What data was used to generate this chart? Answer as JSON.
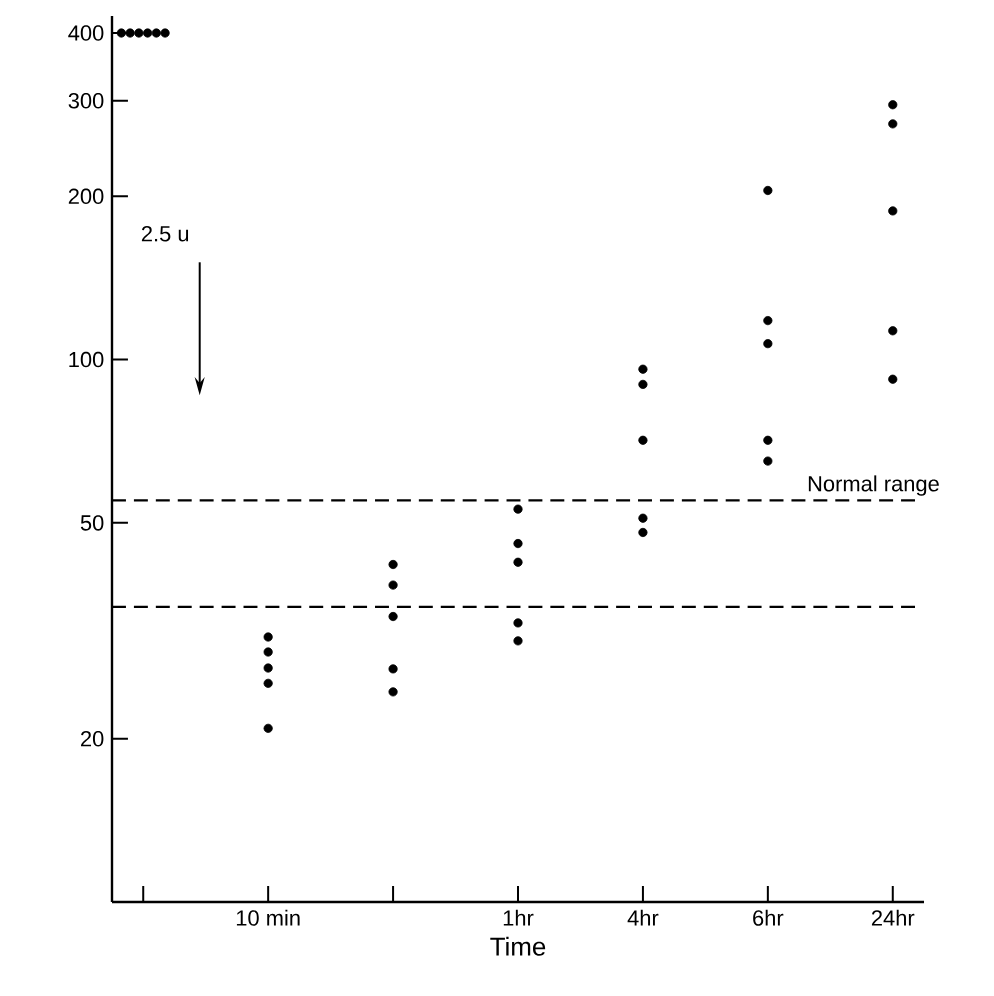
{
  "chart_data": {
    "type": "scatter",
    "xlabel": "Time",
    "annotations": [
      "2.5 u",
      "Normal range"
    ],
    "categories": [
      null,
      "10 min",
      null,
      "1hr",
      "4hr",
      "6hr",
      "24hr"
    ],
    "series": [
      {
        "color": "#000000",
        "values": [
          400,
          30.8,
          41.9,
          53,
          96,
          205,
          295
        ]
      },
      {
        "color": "#000000",
        "values": [
          400,
          28.9,
          38.4,
          45.8,
          90,
          118,
          272
        ]
      },
      {
        "color": "#000000",
        "values": [
          400,
          27,
          33.6,
          42.3,
          71,
          107,
          188
        ]
      },
      {
        "color": "#000000",
        "values": [
          400,
          25.3,
          26.9,
          32.7,
          51,
          71,
          113
        ]
      },
      {
        "color": "#000000",
        "values": [
          400,
          20.9,
          24.4,
          30.3,
          48,
          65,
          92
        ]
      },
      {
        "color": "#000000",
        "values": [
          400,
          null,
          null,
          null,
          null,
          null,
          null
        ]
      }
    ],
    "ylim": [
      10,
      430
    ],
    "yticks": [
      20,
      50,
      100,
      200,
      300,
      400
    ],
    "log": true,
    "ref_lines": [
      {
        "axis": "y",
        "value": 55,
        "line_style": "dashed",
        "color": "#000000"
      },
      {
        "axis": "y",
        "value": 35,
        "line_style": "dashed",
        "color": "#000000"
      }
    ],
    "grid": false
  }
}
